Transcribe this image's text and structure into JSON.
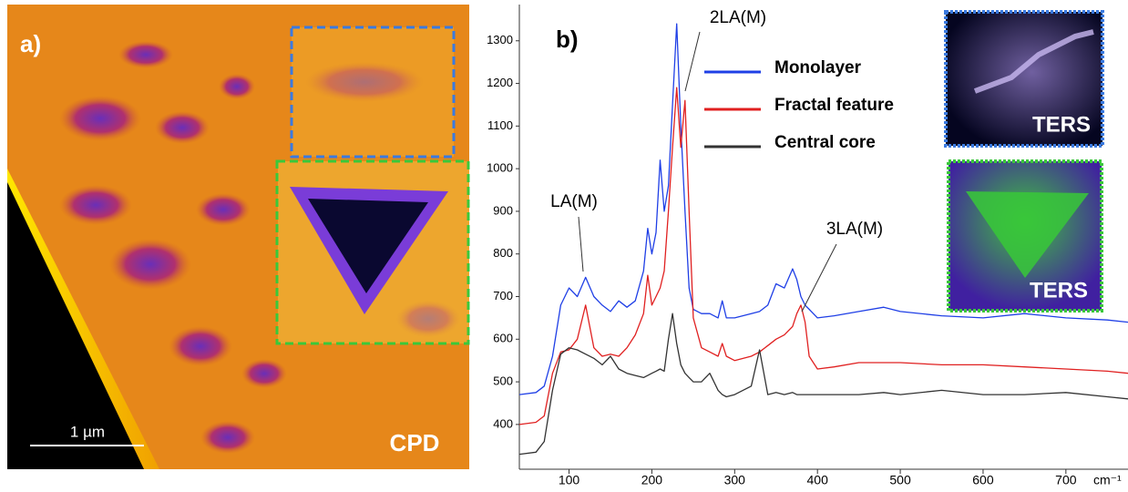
{
  "image_panel": {
    "label": "a)",
    "scale_bar": "1 µm",
    "caption": "CPD"
  },
  "chart_data": {
    "type": "line",
    "label": "b)",
    "x_unit": "cm⁻¹",
    "annotations": [
      "LA(M)",
      "2LA(M)",
      "3LA(M)"
    ],
    "inset_labels": [
      "TERS",
      "TERS"
    ],
    "x": [
      40,
      60,
      70,
      80,
      90,
      100,
      110,
      120,
      130,
      140,
      150,
      160,
      170,
      180,
      190,
      195,
      200,
      205,
      210,
      215,
      220,
      225,
      230,
      235,
      240,
      245,
      250,
      260,
      270,
      280,
      285,
      290,
      300,
      320,
      330,
      340,
      350,
      360,
      370,
      375,
      380,
      385,
      390,
      400,
      420,
      450,
      480,
      500,
      550,
      600,
      650,
      700,
      750,
      775
    ],
    "series": [
      {
        "name": "Monolayer",
        "color": "#1f3fe6",
        "values": [
          470,
          475,
          490,
          560,
          680,
          720,
          700,
          745,
          700,
          680,
          665,
          690,
          675,
          690,
          760,
          860,
          800,
          850,
          1020,
          900,
          960,
          1150,
          1340,
          1100,
          900,
          720,
          670,
          660,
          660,
          650,
          690,
          650,
          650,
          660,
          665,
          680,
          730,
          720,
          765,
          740,
          700,
          680,
          670,
          650,
          655,
          665,
          675,
          665,
          655,
          650,
          660,
          650,
          645,
          640
        ]
      },
      {
        "name": "Fractal feature",
        "color": "#e02020",
        "values": [
          400,
          405,
          420,
          520,
          570,
          575,
          600,
          680,
          580,
          560,
          565,
          560,
          580,
          610,
          660,
          750,
          680,
          700,
          720,
          760,
          900,
          1050,
          1190,
          1050,
          1160,
          900,
          650,
          580,
          570,
          560,
          590,
          560,
          550,
          560,
          570,
          585,
          600,
          610,
          630,
          660,
          680,
          640,
          560,
          530,
          535,
          545,
          545,
          545,
          540,
          540,
          535,
          530,
          525,
          520
        ]
      },
      {
        "name": "Central core",
        "color": "#333333",
        "values": [
          330,
          335,
          360,
          480,
          565,
          580,
          575,
          565,
          555,
          540,
          560,
          530,
          520,
          515,
          510,
          515,
          520,
          525,
          530,
          525,
          600,
          660,
          590,
          540,
          520,
          510,
          500,
          500,
          520,
          480,
          470,
          465,
          470,
          490,
          575,
          470,
          475,
          470,
          475,
          470,
          470,
          470,
          470,
          470,
          470,
          470,
          475,
          470,
          480,
          470,
          470,
          475,
          465,
          460
        ]
      }
    ],
    "xlim": [
      40,
      775
    ],
    "ylim": [
      295,
      1385
    ],
    "xticks": [
      100,
      200,
      300,
      400,
      500,
      600,
      700
    ],
    "yticks": [
      400,
      500,
      600,
      700,
      800,
      900,
      1000,
      1100,
      1200,
      1300
    ],
    "grid": false
  }
}
